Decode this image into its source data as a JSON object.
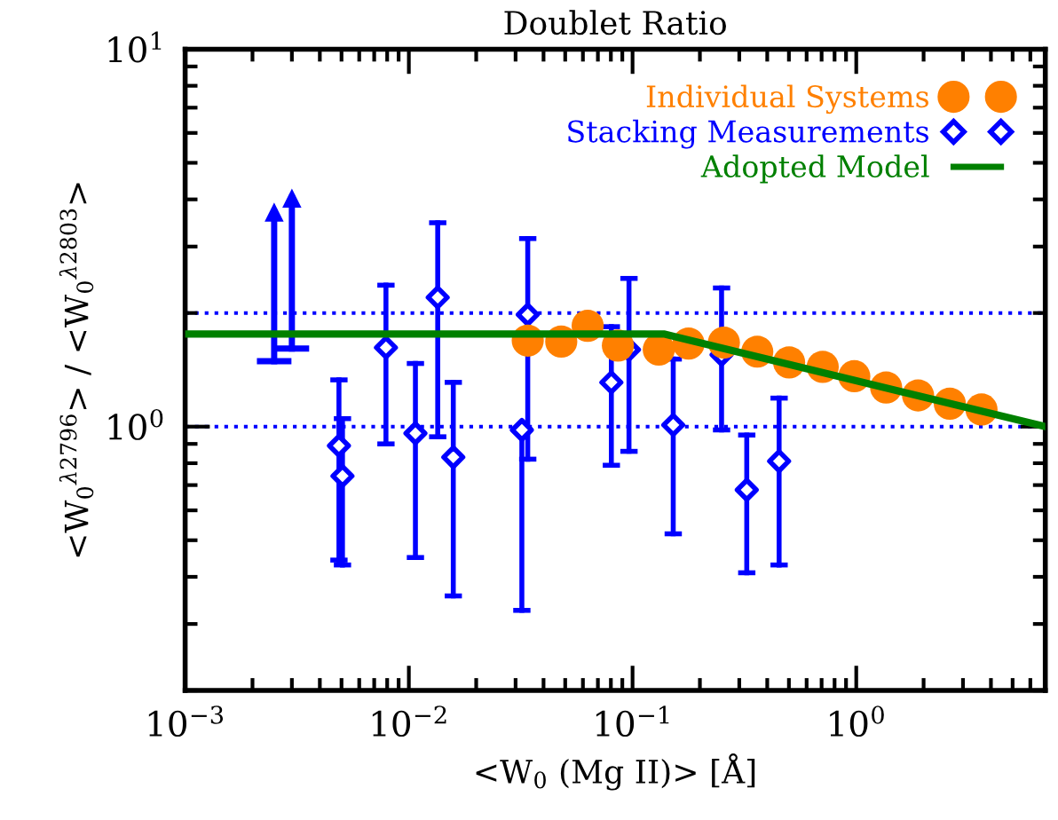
{
  "chart_data": {
    "type": "scatter",
    "title": "Doublet Ratio",
    "xlabel": "<W$_{0}$ (Mg II)> [Å]",
    "ylabel": "<W$_{0}$$^{λ2796}$> / <W$_{0}$$^{λ2803}$>",
    "log": "xy",
    "xlim": [
      0.001,
      7
    ],
    "ylim": [
      0.2,
      10
    ],
    "xticks": [
      {
        "value": 0.001,
        "label": "10$^{−3}$"
      },
      {
        "value": 0.01,
        "label": "10$^{−2}$"
      },
      {
        "value": 0.1,
        "label": "10$^{−1}$"
      },
      {
        "value": 1,
        "label": "10$^{0}$"
      }
    ],
    "yticks": [
      {
        "value": 1,
        "label": "10$^{0}$"
      },
      {
        "value": 10,
        "label": "10$^{1}$"
      }
    ],
    "legend": "top right",
    "ref_lines": [
      {
        "axis": "y",
        "value": 1,
        "color": "#0000ff",
        "line_style": "dotted"
      },
      {
        "axis": "y",
        "value": 2,
        "color": "#0000ff",
        "line_style": "dotted"
      }
    ],
    "series": [
      {
        "color": "#0000ff",
        "marker": "triangle",
        "x": [
          0.0025,
          0.003
        ],
        "values": [
          3.7,
          4.03
        ],
        "errors": [
          [
            1.49,
            3.7
          ],
          [
            1.61,
            4.03
          ]
        ]
      },
      {
        "name": "Stacking Measurements",
        "color": "#0000ff",
        "marker": "diamond",
        "x": [
          0.00487,
          0.00505,
          0.0079,
          0.0107,
          0.01346,
          0.0158,
          0.034,
          0.032,
          0.0804,
          0.0964,
          0.152,
          0.25,
          0.324,
          0.452
        ],
        "values": [
          0.89,
          0.74,
          1.62,
          0.96,
          2.2,
          0.83,
          1.98,
          0.98,
          1.31,
          1.6,
          1.01,
          1.55,
          0.68,
          0.81
        ],
        "errors": [
          [
            0.443,
            1.33
          ],
          [
            0.43,
            1.05
          ],
          [
            0.9,
            2.37
          ],
          [
            0.45,
            1.47
          ],
          [
            0.94,
            3.47
          ],
          [
            0.356,
            1.31
          ],
          [
            0.82,
            3.15
          ],
          [
            0.326,
            0.98
          ],
          [
            0.79,
            1.84
          ],
          [
            0.86,
            2.47
          ],
          [
            0.52,
            1.51
          ],
          [
            0.98,
            2.33
          ],
          [
            0.41,
            0.95
          ],
          [
            0.43,
            1.19
          ]
        ]
      },
      {
        "name": "Individual Systems",
        "color": "#ff8000",
        "marker": "circle",
        "x": [
          0.034,
          0.048,
          0.063,
          0.086,
          0.131,
          0.178,
          0.256,
          0.361,
          0.501,
          0.708,
          0.98,
          1.36,
          1.89,
          2.62,
          3.63
        ],
        "values": [
          1.69,
          1.68,
          1.85,
          1.64,
          1.6,
          1.66,
          1.67,
          1.58,
          1.48,
          1.44,
          1.36,
          1.27,
          1.21,
          1.15,
          1.11
        ]
      },
      {
        "type": "line",
        "name": "Adopted Model",
        "color": "#008000",
        "line_style": "solid",
        "x": [
          0.001,
          0.138,
          7
        ],
        "values": [
          1.76,
          1.76,
          1.0
        ]
      }
    ]
  }
}
